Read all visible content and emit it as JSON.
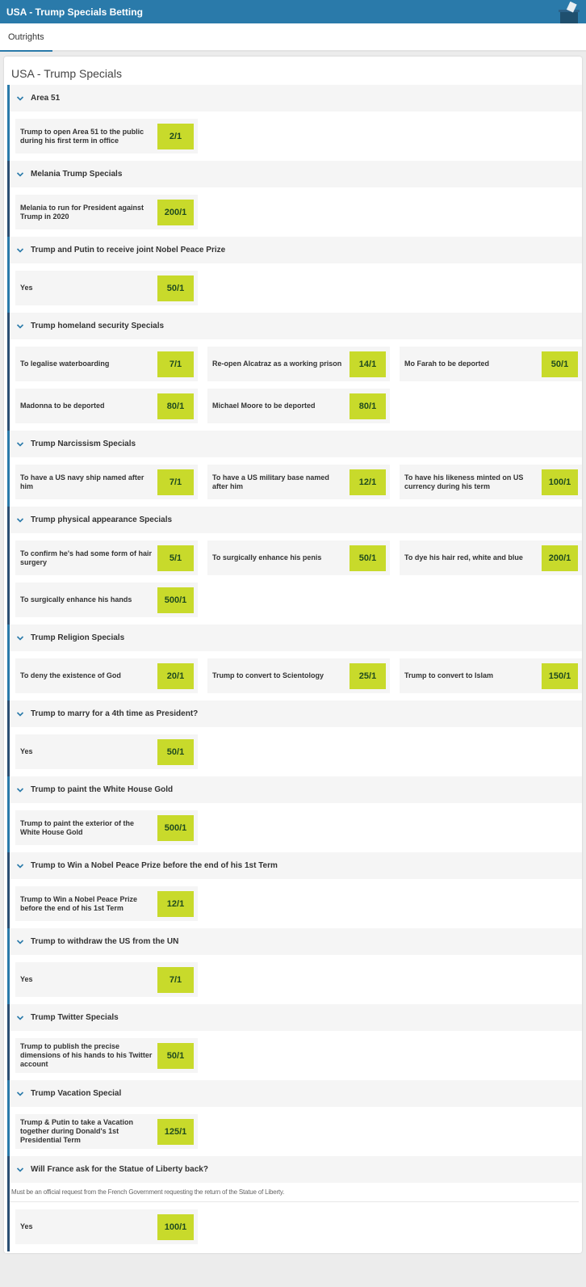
{
  "header": {
    "title": "USA - Trump Specials Betting"
  },
  "tabs": [
    {
      "label": "Outrights",
      "active": true
    }
  ],
  "panel": {
    "title": "USA - Trump Specials"
  },
  "colors": {
    "accent": "#2a7aaa",
    "accent_dark": "#2b4f73",
    "price_bg": "#c8da2b",
    "price_text": "#1f4a1f"
  },
  "sections": [
    {
      "title": "Area 51",
      "selections": [
        {
          "label": "Trump to open Area 51 to the public during his first term in office",
          "price": "2/1"
        }
      ]
    },
    {
      "title": "Melania Trump Specials",
      "selections": [
        {
          "label": "Melania to run for President against Trump in 2020",
          "price": "200/1"
        }
      ]
    },
    {
      "title": "Trump and Putin to receive joint Nobel Peace Prize",
      "selections": [
        {
          "label": "Yes",
          "price": "50/1"
        }
      ]
    },
    {
      "title": "Trump homeland security Specials",
      "selections": [
        {
          "label": "To legalise waterboarding",
          "price": "7/1"
        },
        {
          "label": "Re-open Alcatraz as a working prison",
          "price": "14/1"
        },
        {
          "label": "Mo Farah to be deported",
          "price": "50/1"
        },
        {
          "label": "Madonna to be deported",
          "price": "80/1"
        },
        {
          "label": "Michael Moore to be deported",
          "price": "80/1"
        }
      ]
    },
    {
      "title": "Trump Narcissism Specials",
      "selections": [
        {
          "label": "To have a US navy ship named after him",
          "price": "7/1"
        },
        {
          "label": "To have a US military base named after him",
          "price": "12/1"
        },
        {
          "label": "To have his likeness minted on US currency during his term",
          "price": "100/1"
        }
      ]
    },
    {
      "title": "Trump physical appearance Specials",
      "selections": [
        {
          "label": "To confirm he's had some form of hair surgery",
          "price": "5/1"
        },
        {
          "label": "To surgically enhance his penis",
          "price": "50/1"
        },
        {
          "label": "To dye his hair red, white and blue",
          "price": "200/1"
        },
        {
          "label": "To surgically enhance his hands",
          "price": "500/1"
        }
      ]
    },
    {
      "title": "Trump Religion Specials",
      "selections": [
        {
          "label": "To deny the existence of God",
          "price": "20/1"
        },
        {
          "label": "Trump to convert to Scientology",
          "price": "25/1"
        },
        {
          "label": "Trump to convert to Islam",
          "price": "150/1"
        }
      ]
    },
    {
      "title": "Trump to marry for a 4th time as President?",
      "selections": [
        {
          "label": "Yes",
          "price": "50/1"
        }
      ]
    },
    {
      "title": "Trump to paint the White House Gold",
      "selections": [
        {
          "label": "Trump to paint the exterior of the White House Gold",
          "price": "500/1"
        }
      ]
    },
    {
      "title": "Trump to Win a Nobel Peace Prize before the end of his 1st Term",
      "selections": [
        {
          "label": "Trump to Win a Nobel Peace Prize before the end of his 1st Term",
          "price": "12/1"
        }
      ]
    },
    {
      "title": "Trump to withdraw the US from the UN",
      "selections": [
        {
          "label": "Yes",
          "price": "7/1"
        }
      ]
    },
    {
      "title": "Trump Twitter Specials",
      "selections": [
        {
          "label": "Trump to publish the precise dimensions of his hands to his Twitter account",
          "price": "50/1"
        }
      ]
    },
    {
      "title": "Trump Vacation Special",
      "selections": [
        {
          "label": "Trump & Putin to take a Vacation together during Donald's 1st Presidential Term",
          "price": "125/1"
        }
      ]
    },
    {
      "title": "Will France ask for the Statue of Liberty back?",
      "description": "Must be an official request from the French Government requesting the return of the Statue of Liberty.",
      "selections": [
        {
          "label": "Yes",
          "price": "100/1"
        }
      ]
    }
  ]
}
